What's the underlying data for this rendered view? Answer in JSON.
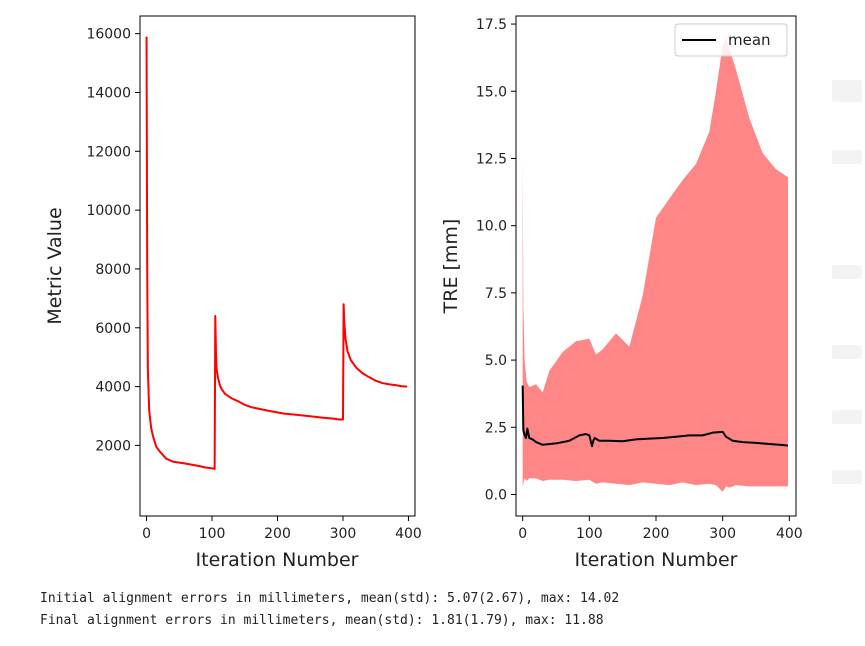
{
  "chart_data": [
    {
      "type": "line",
      "title": "",
      "xlabel": "Iteration Number",
      "ylabel": "Metric Value",
      "xlim": [
        -10,
        410
      ],
      "ylim": [
        -400,
        16600
      ],
      "xticks": [
        "0",
        "100",
        "200",
        "300",
        "400"
      ],
      "yticks": [
        "2000",
        "4000",
        "6000",
        "8000",
        "10000",
        "12000",
        "14000",
        "16000"
      ],
      "series": [
        {
          "name": "metric",
          "color": "#ff0000",
          "x": [
            0,
            1,
            2,
            4,
            7,
            10,
            15,
            20,
            30,
            40,
            60,
            80,
            90,
            100,
            104,
            105,
            106,
            107,
            109,
            112,
            115,
            120,
            130,
            140,
            150,
            160,
            175,
            190,
            210,
            230,
            250,
            270,
            285,
            295,
            300,
            301,
            302,
            304,
            307,
            312,
            320,
            330,
            340,
            350,
            360,
            370,
            380,
            390,
            398
          ],
          "y": [
            15900,
            8000,
            4600,
            3200,
            2600,
            2300,
            1950,
            1800,
            1550,
            1450,
            1380,
            1300,
            1250,
            1220,
            1200,
            6400,
            5200,
            4600,
            4300,
            4050,
            3900,
            3750,
            3600,
            3500,
            3380,
            3300,
            3230,
            3160,
            3080,
            3040,
            2990,
            2940,
            2910,
            2880,
            2880,
            6800,
            6200,
            5600,
            5200,
            4900,
            4650,
            4450,
            4320,
            4200,
            4120,
            4080,
            4050,
            4010,
            4000
          ]
        }
      ]
    },
    {
      "type": "area",
      "title": "",
      "xlabel": "Iteration Number",
      "ylabel": "TRE [mm]",
      "xlim": [
        -10,
        410
      ],
      "ylim": [
        -0.8,
        17.8
      ],
      "xticks": [
        "0",
        "100",
        "200",
        "300",
        "400"
      ],
      "yticks": [
        "0.0",
        "2.5",
        "5.0",
        "7.5",
        "10.0",
        "12.5",
        "15.0",
        "17.5"
      ],
      "legend": {
        "entries": [
          "mean"
        ],
        "loc": "top-right"
      },
      "series": [
        {
          "name": "mean",
          "color": "#000000",
          "x": [
            0,
            1,
            3,
            5,
            7,
            10,
            15,
            20,
            30,
            50,
            70,
            85,
            95,
            100,
            104,
            106,
            108,
            115,
            130,
            150,
            170,
            190,
            210,
            230,
            250,
            270,
            285,
            300,
            305,
            315,
            330,
            350,
            370,
            390,
            398
          ],
          "y": [
            4.05,
            2.4,
            2.2,
            2.1,
            2.45,
            2.1,
            2.05,
            1.95,
            1.85,
            1.9,
            2.0,
            2.2,
            2.25,
            2.2,
            1.8,
            2.0,
            2.1,
            2.0,
            2.0,
            1.98,
            2.05,
            2.08,
            2.1,
            2.15,
            2.2,
            2.2,
            2.3,
            2.33,
            2.15,
            2.0,
            1.95,
            1.92,
            1.88,
            1.84,
            1.82
          ]
        },
        {
          "name": "spread",
          "color": "#ff7f7f",
          "x": [
            0,
            1,
            3,
            6,
            10,
            20,
            30,
            40,
            60,
            80,
            100,
            110,
            120,
            140,
            160,
            180,
            200,
            220,
            240,
            260,
            280,
            290,
            300,
            305,
            310,
            320,
            340,
            360,
            380,
            398
          ],
          "upper": [
            12.5,
            7.0,
            5.0,
            4.2,
            4.0,
            4.1,
            3.8,
            4.6,
            5.3,
            5.7,
            5.8,
            5.2,
            5.4,
            6.0,
            5.5,
            7.4,
            10.3,
            11.0,
            11.7,
            12.3,
            13.5,
            15.0,
            16.7,
            17.0,
            16.6,
            15.8,
            14.0,
            12.7,
            12.1,
            11.8
          ],
          "lower": [
            0.3,
            0.4,
            0.6,
            0.5,
            0.6,
            0.6,
            0.5,
            0.55,
            0.55,
            0.5,
            0.55,
            0.4,
            0.45,
            0.4,
            0.35,
            0.45,
            0.4,
            0.35,
            0.45,
            0.35,
            0.4,
            0.35,
            0.1,
            0.3,
            0.25,
            0.35,
            0.3,
            0.3,
            0.3,
            0.3
          ]
        }
      ]
    }
  ],
  "output": {
    "line1": "Initial alignment errors in millimeters, mean(std): 5.07(2.67), max: 14.02",
    "line2": "Final alignment errors in millimeters, mean(std): 1.81(1.79), max: 11.88"
  }
}
